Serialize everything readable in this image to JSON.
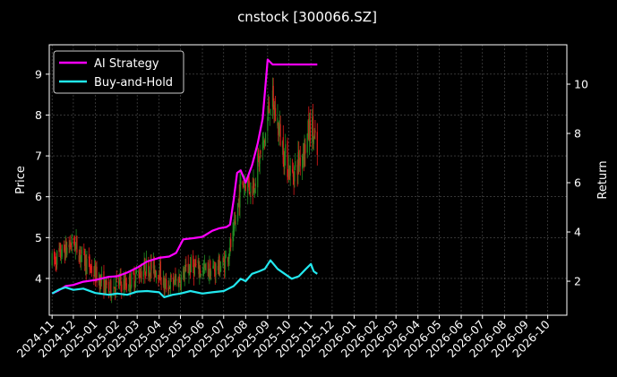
{
  "chart_data": {
    "type": "line",
    "title": "cnstock [300066.SZ]",
    "ylabel_left": "Price",
    "ylabel_right": "Return",
    "grid": true,
    "legend_position": "top-left",
    "x_tick_labels": [
      "2024-11",
      "2024-12",
      "2025-01",
      "2025-02",
      "2025-03",
      "2025-04",
      "2025-05",
      "2025-06",
      "2025-07",
      "2025-08",
      "2025-09",
      "2025-10",
      "2025-11",
      "2025-12",
      "2026-01",
      "2026-02",
      "2026-03",
      "2026-04",
      "2026-05",
      "2026-06",
      "2026-07",
      "2026-08",
      "2026-09",
      "2026-10"
    ],
    "x_range": [
      "2024-10-28",
      "2026-10-28"
    ],
    "y_left": {
      "ticks": [
        4,
        5,
        6,
        7,
        8,
        9
      ],
      "range": [
        3.1,
        9.72
      ]
    },
    "y_right": {
      "ticks": [
        2,
        4,
        6,
        8,
        10
      ],
      "range": [
        0.62,
        11.6
      ]
    },
    "colors": {
      "background": "#000000",
      "ai": "#ff00ff",
      "bh": "#22e8ef",
      "up": "#228b22",
      "down": "#e01b1b",
      "grid": "#555555",
      "axis": "#ffffff"
    },
    "series": [
      {
        "name": "AI Strategy",
        "axis": "right",
        "color": "#ff00ff",
        "points": [
          [
            "2024-11-01",
            1.5
          ],
          [
            "2024-11-10",
            1.62
          ],
          [
            "2024-11-20",
            1.8
          ],
          [
            "2024-12-01",
            1.85
          ],
          [
            "2024-12-15",
            1.98
          ],
          [
            "2025-01-01",
            2.05
          ],
          [
            "2025-01-20",
            2.18
          ],
          [
            "2025-02-01",
            2.2
          ],
          [
            "2025-02-15",
            2.35
          ],
          [
            "2025-03-01",
            2.55
          ],
          [
            "2025-03-15",
            2.8
          ],
          [
            "2025-04-01",
            2.95
          ],
          [
            "2025-04-15",
            3.0
          ],
          [
            "2025-04-25",
            3.15
          ],
          [
            "2025-05-05",
            3.7
          ],
          [
            "2025-05-20",
            3.75
          ],
          [
            "2025-06-01",
            3.8
          ],
          [
            "2025-06-15",
            4.05
          ],
          [
            "2025-06-25",
            4.15
          ],
          [
            "2025-07-05",
            4.2
          ],
          [
            "2025-07-10",
            4.3
          ],
          [
            "2025-07-15",
            5.3
          ],
          [
            "2025-07-20",
            6.4
          ],
          [
            "2025-07-25",
            6.5
          ],
          [
            "2025-08-01",
            6.0
          ],
          [
            "2025-08-10",
            6.7
          ],
          [
            "2025-08-18",
            7.6
          ],
          [
            "2025-08-25",
            8.6
          ],
          [
            "2025-09-01",
            11.0
          ],
          [
            "2025-09-08",
            10.8
          ],
          [
            "2025-11-10",
            10.8
          ]
        ]
      },
      {
        "name": "Buy-and-Hold",
        "axis": "right",
        "color": "#22e8ef",
        "points": [
          [
            "2024-11-01",
            1.5
          ],
          [
            "2024-11-10",
            1.65
          ],
          [
            "2024-11-20",
            1.75
          ],
          [
            "2024-12-01",
            1.65
          ],
          [
            "2024-12-15",
            1.7
          ],
          [
            "2025-01-01",
            1.52
          ],
          [
            "2025-01-20",
            1.45
          ],
          [
            "2025-02-01",
            1.5
          ],
          [
            "2025-02-15",
            1.45
          ],
          [
            "2025-03-01",
            1.58
          ],
          [
            "2025-03-15",
            1.6
          ],
          [
            "2025-04-01",
            1.55
          ],
          [
            "2025-04-08",
            1.35
          ],
          [
            "2025-04-20",
            1.45
          ],
          [
            "2025-05-01",
            1.5
          ],
          [
            "2025-05-15",
            1.6
          ],
          [
            "2025-06-01",
            1.5
          ],
          [
            "2025-06-15",
            1.55
          ],
          [
            "2025-07-01",
            1.6
          ],
          [
            "2025-07-15",
            1.8
          ],
          [
            "2025-07-25",
            2.1
          ],
          [
            "2025-08-01",
            2.0
          ],
          [
            "2025-08-10",
            2.3
          ],
          [
            "2025-08-20",
            2.4
          ],
          [
            "2025-08-28",
            2.5
          ],
          [
            "2025-09-05",
            2.85
          ],
          [
            "2025-09-15",
            2.5
          ],
          [
            "2025-09-25",
            2.3
          ],
          [
            "2025-10-05",
            2.1
          ],
          [
            "2025-10-15",
            2.2
          ],
          [
            "2025-10-25",
            2.5
          ],
          [
            "2025-11-01",
            2.7
          ],
          [
            "2025-11-05",
            2.4
          ],
          [
            "2025-11-10",
            2.3
          ]
        ]
      }
    ],
    "price_path": [
      [
        "2024-11-01",
        4.4
      ],
      [
        "2024-11-20",
        4.7
      ],
      [
        "2024-12-01",
        4.9
      ],
      [
        "2024-12-15",
        4.5
      ],
      [
        "2025-01-01",
        4.1
      ],
      [
        "2025-01-20",
        3.7
      ],
      [
        "2025-02-01",
        3.9
      ],
      [
        "2025-02-15",
        3.85
      ],
      [
        "2025-03-01",
        4.1
      ],
      [
        "2025-03-15",
        4.3
      ],
      [
        "2025-04-01",
        4.2
      ],
      [
        "2025-04-08",
        3.8
      ],
      [
        "2025-04-20",
        3.9
      ],
      [
        "2025-05-01",
        4.0
      ],
      [
        "2025-05-15",
        4.3
      ],
      [
        "2025-06-01",
        4.2
      ],
      [
        "2025-06-15",
        4.2
      ],
      [
        "2025-07-01",
        4.35
      ],
      [
        "2025-07-15",
        5.0
      ],
      [
        "2025-07-25",
        6.3
      ],
      [
        "2025-08-01",
        6.4
      ],
      [
        "2025-08-10",
        6.2
      ],
      [
        "2025-08-20",
        6.9
      ],
      [
        "2025-08-28",
        7.4
      ],
      [
        "2025-09-05",
        8.4
      ],
      [
        "2025-09-15",
        7.8
      ],
      [
        "2025-09-25",
        7.0
      ],
      [
        "2025-10-05",
        6.5
      ],
      [
        "2025-10-15",
        6.9
      ],
      [
        "2025-10-25",
        7.3
      ],
      [
        "2025-11-01",
        7.8
      ],
      [
        "2025-11-10",
        7.0
      ]
    ]
  }
}
